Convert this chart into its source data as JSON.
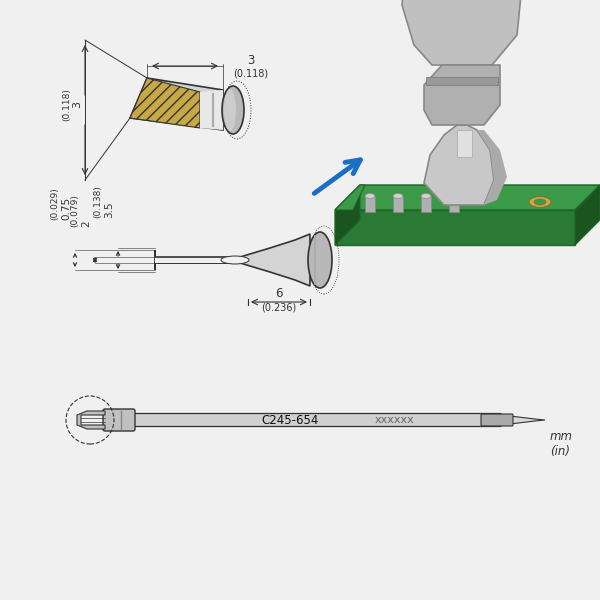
{
  "bg_color": "#f0f0f0",
  "title_code": "C245-654",
  "title_xxx": "xxxxxx",
  "unit_label": "mm\n(in)",
  "arrow_color": "#1a6fc4",
  "line_color": "#333333",
  "tip_gray_light": "#d4d4d4",
  "tip_gray_mid": "#b8b8b8",
  "tip_gray_dark": "#999999",
  "tip_gold": "#c8a845",
  "board_green": "#3a9a48",
  "board_dark_green": "#1d6628",
  "board_side_green": "#2a7a35",
  "pin_silver": "#c8c8c8",
  "pin_gold": "#c8a845"
}
